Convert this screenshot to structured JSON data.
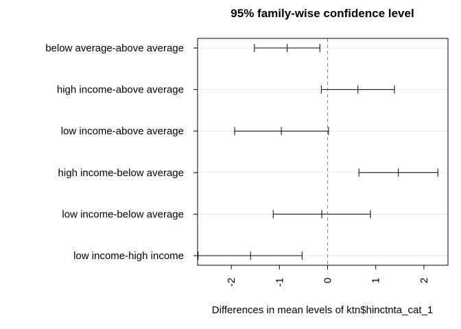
{
  "chart_data": {
    "type": "interval",
    "title": "95% family-wise confidence level",
    "xlabel": "Differences in mean levels of ktn$hinctnta_cat_1",
    "ylabel": "",
    "xlim": [
      -2.7,
      2.5
    ],
    "xticks": [
      -2,
      -1,
      0,
      1,
      2
    ],
    "xtick_labels": [
      "-2",
      "-1",
      "0",
      "1",
      "2"
    ],
    "reference_line": 0,
    "grid": true,
    "comparisons": [
      {
        "label": "below average-above average",
        "lower": -1.52,
        "estimate": -0.84,
        "upper": -0.16
      },
      {
        "label": "high income-above average",
        "lower": -0.13,
        "estimate": 0.63,
        "upper": 1.39
      },
      {
        "label": "low income-above average",
        "lower": -1.93,
        "estimate": -0.96,
        "upper": 0.02
      },
      {
        "label": "high income-below average",
        "lower": 0.65,
        "estimate": 1.47,
        "upper": 2.29
      },
      {
        "label": "low income-below average",
        "lower": -1.13,
        "estimate": -0.12,
        "upper": 0.89
      },
      {
        "label": "low income-high income",
        "lower": -2.69,
        "estimate": -1.6,
        "upper": -0.53
      }
    ],
    "colors": {
      "interval": "#000000",
      "reference": "#808080",
      "grid": "#e6e6e6"
    }
  }
}
